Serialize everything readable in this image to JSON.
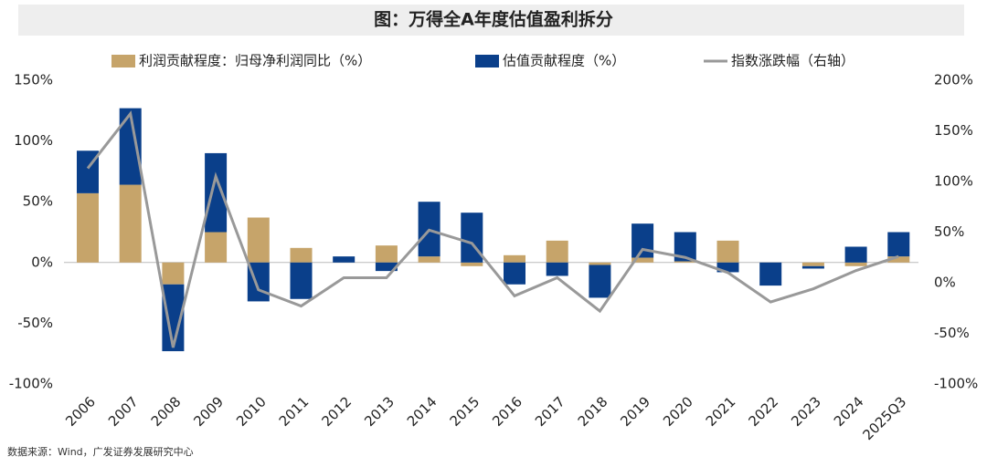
{
  "chart_data": {
    "type": "bar",
    "title": "图：万得全A年度估值盈利拆分",
    "source": "数据来源：Wind，广发证券发展研究中心",
    "categories": [
      "2006",
      "2007",
      "2008",
      "2009",
      "2010",
      "2011",
      "2012",
      "2013",
      "2014",
      "2015",
      "2016",
      "2017",
      "2018",
      "2019",
      "2020",
      "2021",
      "2022",
      "2023",
      "2024",
      "2025Q3"
    ],
    "series": [
      {
        "name": "利润贡献程度：归母净利润同比（%）",
        "color": "#c6a46a",
        "type": "bar",
        "values": [
          57,
          64,
          -18,
          25,
          37,
          12,
          0,
          14,
          5,
          -3,
          6,
          18,
          -2,
          4,
          1,
          18,
          0,
          -3,
          -3,
          5
        ]
      },
      {
        "name": "估值贡献程度（%）",
        "color": "#0a3f8a",
        "type": "bar",
        "values": [
          35,
          63,
          -55,
          65,
          -32,
          -30,
          5,
          -7,
          45,
          41,
          -18,
          -11,
          -27,
          28,
          24,
          -8,
          -19,
          -2,
          13,
          20
        ]
      },
      {
        "name": "指数涨跌幅（右轴）",
        "color": "#999999",
        "type": "line",
        "axis": "y2",
        "values": [
          113,
          167,
          -64,
          105,
          -7,
          -23,
          5,
          5,
          52,
          39,
          -13,
          5,
          -28,
          33,
          25,
          10,
          -19,
          -6,
          12,
          26
        ]
      }
    ],
    "ylim": [
      -100,
      150
    ],
    "yticks": [
      {
        "value": -100,
        "label": "-100%"
      },
      {
        "value": -50,
        "label": "-50%"
      },
      {
        "value": 0,
        "label": "0%"
      },
      {
        "value": 50,
        "label": "50%"
      },
      {
        "value": 100,
        "label": "100%"
      },
      {
        "value": 150,
        "label": "150%"
      }
    ],
    "y2lim": [
      -100,
      200
    ],
    "y2ticks": [
      {
        "value": -100,
        "label": "-100%"
      },
      {
        "value": -50,
        "label": "-50%"
      },
      {
        "value": 0,
        "label": "0%"
      },
      {
        "value": 50,
        "label": "50%"
      },
      {
        "value": 100,
        "label": "100%"
      },
      {
        "value": 150,
        "label": "150%"
      },
      {
        "value": 200,
        "label": "200%"
      }
    ],
    "legend": "top"
  }
}
